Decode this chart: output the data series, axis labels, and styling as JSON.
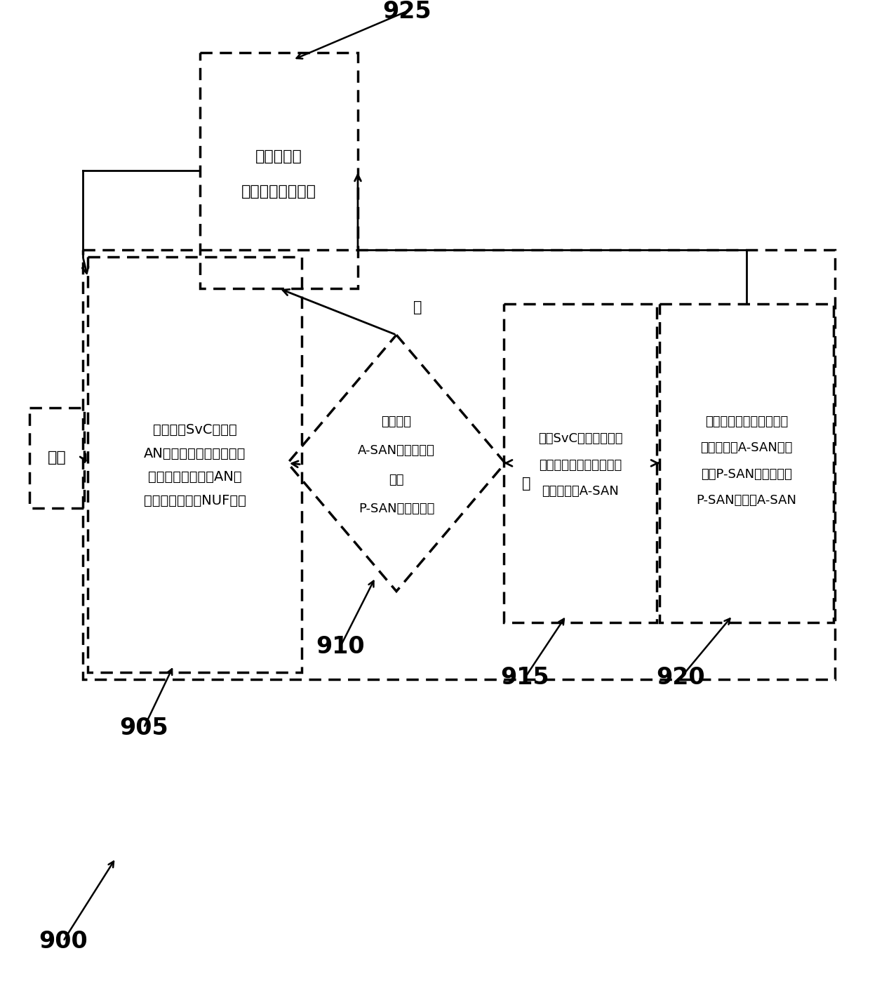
{
  "bg_color": "#ffffff",
  "start_text": "开始",
  "box925_line1": "等待下一个",
  "box925_line2": "（预定）测量时间",
  "box925_label": "925",
  "box905_line1": "测量流过SvC中每个",
  "box905_line2": "AN的相对数据量（例如，",
  "box905_line3": "通过计算对于每个AN的",
  "box905_line4": "网络使用因子（NUF））",
  "box905_label": "905",
  "diamond910_line1": "流过一个",
  "diamond910_line2": "A-SAN的数据多于",
  "diamond910_line3": "流过",
  "diamond910_line4": "P-SAN的数据吗？",
  "diamond910_label": "910",
  "box915_line1": "确定SvC中在当前测量",
  "box915_line2": "时间周期内具有最高相对",
  "box915_line3": "数据流量的A-SAN",
  "box915_label": "915",
  "box920_line1": "通过完成必要的网络规程",
  "box920_line2": "来将标识的A-SAN设置",
  "box920_line3": "成新P-SAN，并将原始",
  "box920_line4": "P-SAN设置成A-SAN",
  "box920_label": "920",
  "main_label": "900",
  "no_label": "否",
  "yes_label": "是"
}
